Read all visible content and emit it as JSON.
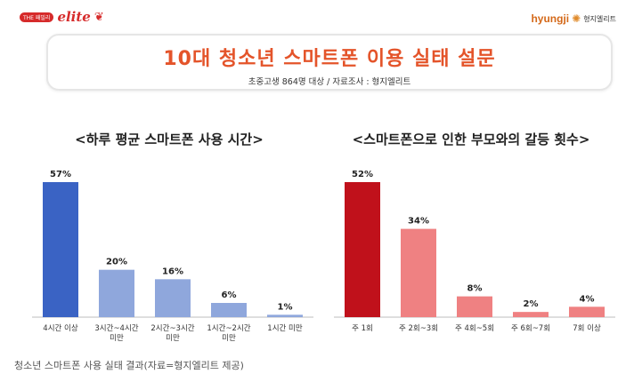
{
  "logos": {
    "left_tag": "THE 패밀리",
    "left_word": "elite",
    "right_word": "hyungji",
    "right_kr": "형지엘리트"
  },
  "header": {
    "title": "10대 청소년 스마트폰 이용 실태 설문",
    "subtitle": "초중고생 864명 대상 /  자료조사 : 형지엘리트"
  },
  "caption": "청소년 스마트폰 사용 실태 결과(자료=형지엘리트 제공)",
  "colors": {
    "left_main": "#3a63c4",
    "left_light": "#8fa7dc",
    "right_main": "#c0111b",
    "right_light": "#ef8182"
  },
  "chart_data": [
    {
      "type": "bar",
      "title": "<하루 평균 스마트폰 사용 시간>",
      "categories": [
        "4시간 이상",
        "3시간~4시간 미만",
        "2시간~3시간 미만",
        "1시간~2시간 미만",
        "1시간 미만"
      ],
      "category_lines": [
        [
          "4시간 이상"
        ],
        [
          "3시간~4시간",
          "미만"
        ],
        [
          "2시간~3시간",
          "미만"
        ],
        [
          "1시간~2시간",
          "미만"
        ],
        [
          "1시간 미만"
        ]
      ],
      "values": [
        57,
        20,
        16,
        6,
        1
      ],
      "value_labels": [
        "57%",
        "20%",
        "16%",
        "6%",
        "1%"
      ],
      "unit": "%",
      "ylim": [
        0,
        60
      ],
      "grid": false
    },
    {
      "type": "bar",
      "title": "<스마트폰으로 인한 부모와의 갈등 횟수>",
      "categories": [
        "주 1회",
        "주 2회~3회",
        "주 4회~5회",
        "주 6회~7회",
        "7회 이상"
      ],
      "category_lines": [
        [
          "주 1회"
        ],
        [
          "주 2회~3회"
        ],
        [
          "주 4회~5회"
        ],
        [
          "주 6회~7회"
        ],
        [
          "7회 이상"
        ]
      ],
      "values": [
        52,
        34,
        8,
        2,
        4
      ],
      "value_labels": [
        "52%",
        "34%",
        "8%",
        "2%",
        "4%"
      ],
      "unit": "%",
      "ylim": [
        0,
        60
      ],
      "grid": false
    }
  ]
}
